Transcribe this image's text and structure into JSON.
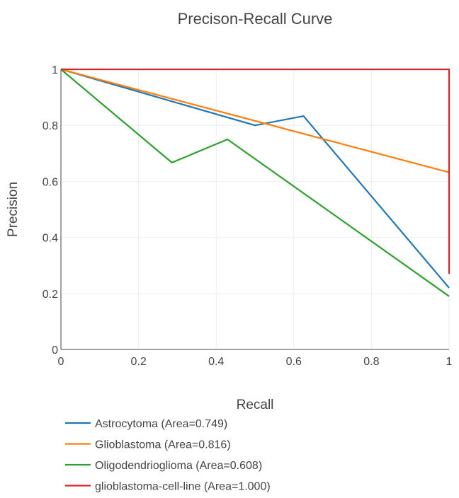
{
  "chart_data": {
    "type": "line",
    "title": "Precison-Recall Curve",
    "xlabel": "Recall",
    "ylabel": "Precision",
    "xlim": [
      0,
      1
    ],
    "ylim": [
      0,
      1
    ],
    "x_ticks": [
      0,
      0.2,
      0.4,
      0.6,
      0.8,
      1
    ],
    "y_ticks": [
      0,
      0.2,
      0.4,
      0.6,
      0.8,
      1
    ],
    "x_tick_labels": [
      "0",
      "0.2",
      "0.4",
      "0.6",
      "0.8",
      "1"
    ],
    "y_tick_labels": [
      "0",
      "0.2",
      "0.4",
      "0.6",
      "0.8",
      "1"
    ],
    "grid": true,
    "legend_position": "bottom-left",
    "series": [
      {
        "name": "Astrocytoma (Area=0.749)",
        "color": "#1f77b4",
        "points": [
          [
            0,
            1
          ],
          [
            0.5,
            0.8
          ],
          [
            0.625,
            0.833
          ],
          [
            1,
            0.22
          ]
        ]
      },
      {
        "name": "Glioblastoma (Area=0.816)",
        "color": "#ff7f0e",
        "points": [
          [
            0,
            1
          ],
          [
            1,
            0.632
          ]
        ]
      },
      {
        "name": "Oligodendrioglioma (Area=0.608)",
        "color": "#2ca02c",
        "points": [
          [
            0,
            1
          ],
          [
            0.286,
            0.667
          ],
          [
            0.429,
            0.75
          ],
          [
            1,
            0.19
          ]
        ]
      },
      {
        "name": "glioblastoma-cell-line (Area=1.000)",
        "color": "#d62728",
        "points": [
          [
            0,
            1
          ],
          [
            1,
            1
          ],
          [
            1,
            0.27
          ]
        ]
      }
    ]
  }
}
